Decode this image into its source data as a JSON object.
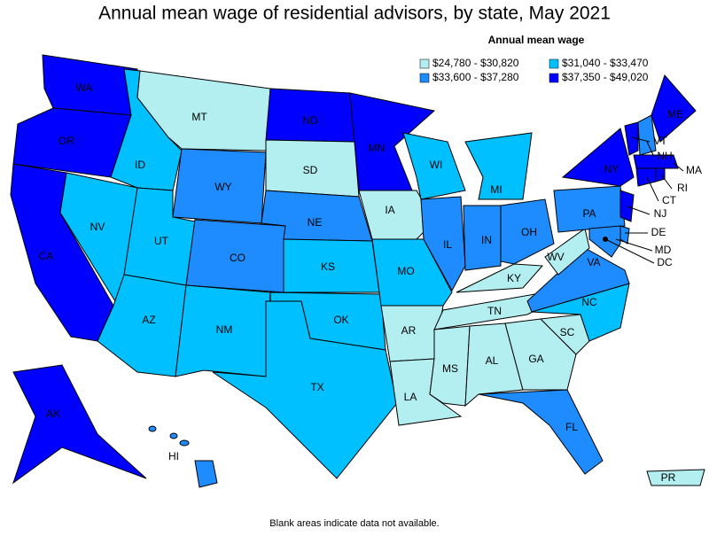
{
  "title": "Annual mean wage of residential advisors, by state, May 2021",
  "legend": {
    "title": "Annual mean wage",
    "items": [
      {
        "label": "$24,780 - $30,820",
        "color": "#b3eef0"
      },
      {
        "label": "$31,040 - $33,470",
        "color": "#00c0ff"
      },
      {
        "label": "$33,600 - $37,280",
        "color": "#1e8cff"
      },
      {
        "label": "$37,350 - $49,020",
        "color": "#0000ff"
      }
    ]
  },
  "states": [
    {
      "label": "WA",
      "color": "#0000ff"
    },
    {
      "label": "OR",
      "color": "#0000ff"
    },
    {
      "label": "CA",
      "color": "#0000ff"
    },
    {
      "label": "NV",
      "color": "#00c0ff"
    },
    {
      "label": "ID",
      "color": "#00c0ff"
    },
    {
      "label": "MT",
      "color": "#b3eef0"
    },
    {
      "label": "WY",
      "color": "#1e8cff"
    },
    {
      "label": "UT",
      "color": "#00c0ff"
    },
    {
      "label": "AZ",
      "color": "#00c0ff"
    },
    {
      "label": "CO",
      "color": "#1e8cff"
    },
    {
      "label": "NM",
      "color": "#00c0ff"
    },
    {
      "label": "ND",
      "color": "#0000ff"
    },
    {
      "label": "SD",
      "color": "#b3eef0"
    },
    {
      "label": "NE",
      "color": "#1e8cff"
    },
    {
      "label": "KS",
      "color": "#00c0ff"
    },
    {
      "label": "OK",
      "color": "#00c0ff"
    },
    {
      "label": "TX",
      "color": "#00c0ff"
    },
    {
      "label": "MN",
      "color": "#0000ff"
    },
    {
      "label": "IA",
      "color": "#b3eef0"
    },
    {
      "label": "MO",
      "color": "#00c0ff"
    },
    {
      "label": "AR",
      "color": "#b3eef0"
    },
    {
      "label": "LA",
      "color": "#b3eef0"
    },
    {
      "label": "WI",
      "color": "#00c0ff"
    },
    {
      "label": "IL",
      "color": "#1e8cff"
    },
    {
      "label": "MI",
      "color": "#00c0ff"
    },
    {
      "label": "IN",
      "color": "#1e8cff"
    },
    {
      "label": "OH",
      "color": "#1e8cff"
    },
    {
      "label": "KY",
      "color": "#b3eef0"
    },
    {
      "label": "TN",
      "color": "#b3eef0"
    },
    {
      "label": "MS",
      "color": "#b3eef0"
    },
    {
      "label": "AL",
      "color": "#b3eef0"
    },
    {
      "label": "GA",
      "color": "#b3eef0"
    },
    {
      "label": "FL",
      "color": "#1e8cff"
    },
    {
      "label": "SC",
      "color": "#b3eef0"
    },
    {
      "label": "NC",
      "color": "#00c0ff"
    },
    {
      "label": "VA",
      "color": "#1e8cff"
    },
    {
      "label": "WV",
      "color": "#b3eef0"
    },
    {
      "label": "PA",
      "color": "#1e8cff"
    },
    {
      "label": "NY",
      "color": "#0000ff"
    },
    {
      "label": "VT",
      "color": "#0000ff"
    },
    {
      "label": "NH",
      "color": "#1e8cff"
    },
    {
      "label": "ME",
      "color": "#0000ff"
    },
    {
      "label": "MA",
      "color": "#0000ff"
    },
    {
      "label": "CT",
      "color": "#0000ff"
    },
    {
      "label": "RI",
      "color": "#0000ff"
    },
    {
      "label": "NJ",
      "color": "#0000ff"
    },
    {
      "label": "DE",
      "color": "#1e8cff"
    },
    {
      "label": "MD",
      "color": "#1e8cff"
    },
    {
      "label": "AK",
      "color": "#0000ff"
    },
    {
      "label": "HI",
      "color": "#1e8cff"
    },
    {
      "label": "PR",
      "color": "#b3eef0"
    },
    {
      "label": "DC",
      "color": "#000000"
    }
  ],
  "footnote": "Blank areas indicate data not available."
}
